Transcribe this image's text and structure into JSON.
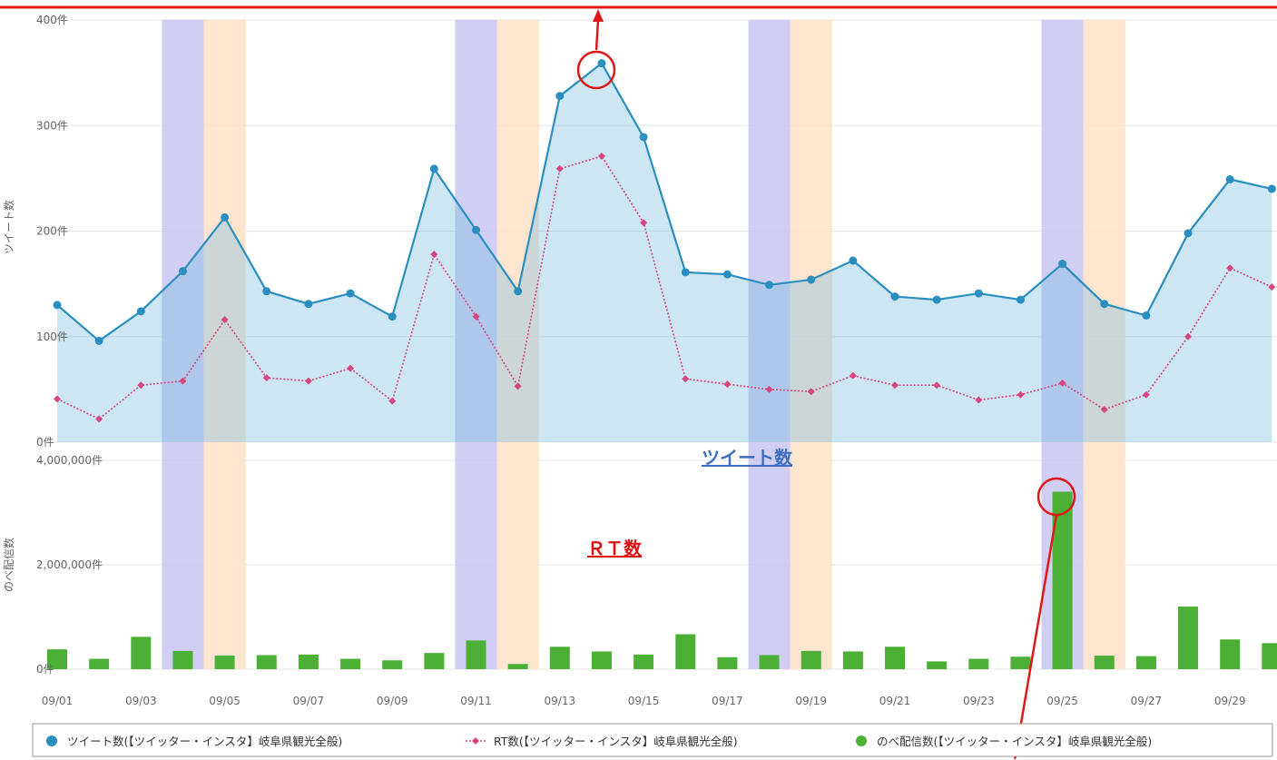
{
  "chart_data": {
    "type": "line",
    "x": [
      "09/01",
      "09/02",
      "09/03",
      "09/04",
      "09/05",
      "09/06",
      "09/07",
      "09/08",
      "09/09",
      "09/10",
      "09/11",
      "09/12",
      "09/13",
      "09/14",
      "09/15",
      "09/16",
      "09/17",
      "09/18",
      "09/19",
      "09/20",
      "09/21",
      "09/22",
      "09/23",
      "09/24",
      "09/25",
      "09/26",
      "09/27",
      "09/28",
      "09/29",
      "09/30"
    ],
    "x_tick_labels": [
      "09/01",
      "09/03",
      "09/05",
      "09/07",
      "09/09",
      "09/11",
      "09/13",
      "09/15",
      "09/17",
      "09/19",
      "09/21",
      "09/23",
      "09/25",
      "09/27",
      "09/29"
    ],
    "tweet_panel": {
      "ylabel": "ツイート数",
      "ylim": [
        0,
        400
      ],
      "y_ticks": [
        "0件",
        "100件",
        "200件",
        "300件",
        "400件"
      ],
      "grid": true
    },
    "delivery_panel": {
      "ylabel": "のべ配信数",
      "ylim": [
        0,
        4000000
      ],
      "y_ticks": [
        "0件",
        "2,000,000件",
        "4,000,000件"
      ],
      "grid": true
    },
    "series": [
      {
        "name": "ツイート数(【ツイッター・インスタ】岐阜県観光全般)",
        "type": "area",
        "color": "#2a8fc0",
        "values": [
          130,
          96,
          124,
          162,
          213,
          143,
          131,
          141,
          119,
          259,
          201,
          143,
          328,
          359,
          289,
          161,
          159,
          149,
          154,
          172,
          138,
          135,
          141,
          135,
          169,
          131,
          120,
          198,
          249,
          240
        ]
      },
      {
        "name": "RT数(【ツイッター・インスタ】岐阜県観光全般)",
        "type": "line",
        "color": "#d6457f",
        "values": [
          41,
          22,
          54,
          58,
          116,
          61,
          58,
          70,
          39,
          178,
          119,
          53,
          259,
          271,
          208,
          60,
          55,
          50,
          48,
          63,
          54,
          54,
          40,
          45,
          56,
          31,
          45,
          100,
          165,
          147
        ]
      },
      {
        "name": "のべ配信数(【ツイッター・インスタ】岐阜県観光全般)",
        "type": "bar",
        "color": "#4caf36",
        "values": [
          380000,
          200000,
          620000,
          350000,
          260000,
          270000,
          280000,
          200000,
          170000,
          310000,
          550000,
          100000,
          430000,
          340000,
          280000,
          670000,
          230000,
          270000,
          350000,
          340000,
          430000,
          150000,
          200000,
          240000,
          3400000,
          260000,
          250000,
          1200000,
          570000,
          500000
        ]
      }
    ],
    "highlight_bands": [
      {
        "index": 3,
        "color": "#c8c6f0"
      },
      {
        "index": 4,
        "color": "#fde1c8"
      },
      {
        "index": 10,
        "color": "#c8c6f0"
      },
      {
        "index": 11,
        "color": "#fde1c8"
      },
      {
        "index": 17,
        "color": "#c8c6f0"
      },
      {
        "index": 18,
        "color": "#fde1c8"
      },
      {
        "index": 24,
        "color": "#c8c6f0"
      },
      {
        "index": 25,
        "color": "#fde1c8"
      }
    ],
    "annotations": [
      {
        "text": "ツイート数",
        "color": "#3f6fc0"
      },
      {
        "text": "ＲＴ数",
        "color": "#dd1111"
      }
    ],
    "legend_position": "bottom"
  }
}
